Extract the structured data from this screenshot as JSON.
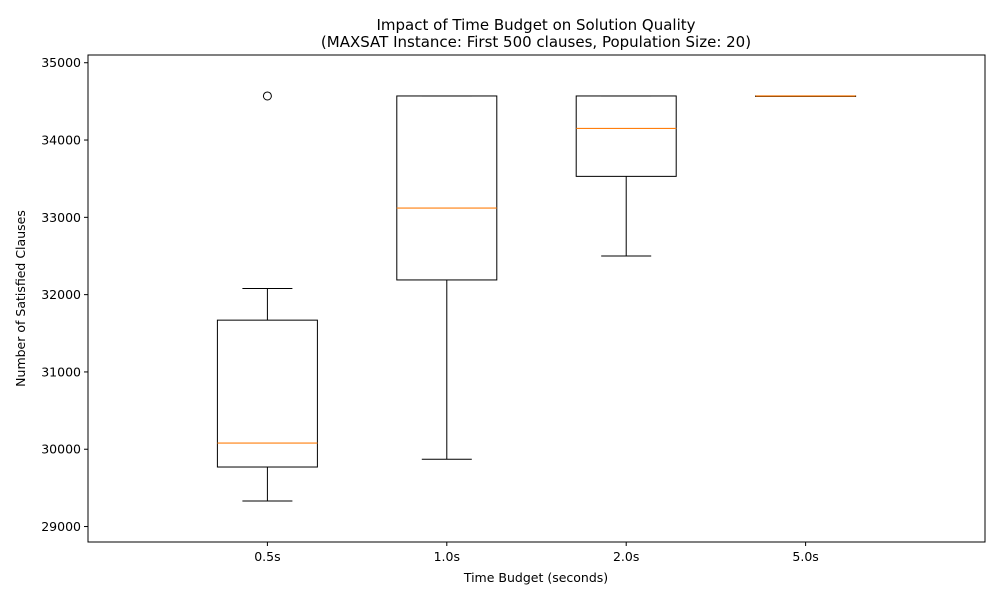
{
  "chart_data": {
    "type": "box",
    "title": "Impact of Time Budget on Solution Quality",
    "subtitle": "(MAXSAT Instance: First 500 clauses, Population Size: 20)",
    "xlabel": "Time Budget (seconds)",
    "ylabel": "Number of Satisfied Clauses",
    "categories": [
      "0.5s",
      "1.0s",
      "2.0s",
      "5.0s"
    ],
    "ylim": [
      28800,
      35100
    ],
    "yticks": [
      29000,
      30000,
      31000,
      32000,
      33000,
      34000,
      35000
    ],
    "grid": false,
    "boxes": [
      {
        "whisker_low": 29330,
        "q1": 29770,
        "median": 30080,
        "q3": 31670,
        "whisker_high": 32080,
        "outliers": [
          34570
        ]
      },
      {
        "whisker_low": 29870,
        "q1": 32190,
        "median": 33120,
        "q3": 34570,
        "whisker_high": 34570,
        "outliers": []
      },
      {
        "whisker_low": 32500,
        "q1": 33530,
        "median": 34150,
        "q3": 34570,
        "whisker_high": 34570,
        "outliers": []
      },
      {
        "whisker_low": 34570,
        "q1": 34570,
        "median": 34570,
        "q3": 34570,
        "whisker_high": 34570,
        "outliers": []
      }
    ],
    "colors": {
      "box": "#000000",
      "median": "#ff7f0e"
    }
  }
}
